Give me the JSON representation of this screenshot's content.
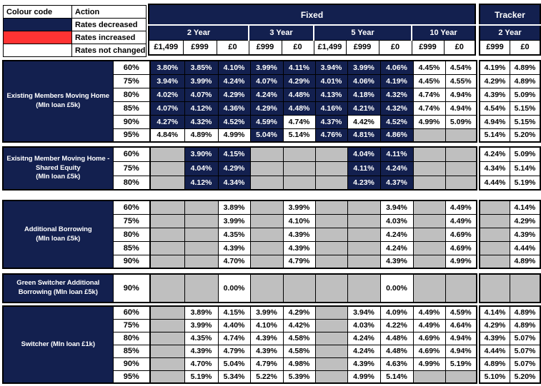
{
  "colors": {
    "navy": "#13204F",
    "red": "#FF3333",
    "grey": "#BFBFBF",
    "white": "#FFFFFF",
    "border": "#000000"
  },
  "legend": {
    "col1_header": "Colour code",
    "col2_header": "Action",
    "rows": [
      {
        "swatch": "navy",
        "label": "Rates decreased"
      },
      {
        "swatch": "red",
        "label": "Rates increased"
      },
      {
        "swatch": "white",
        "label": "Rates not changed"
      }
    ]
  },
  "fixed_header": {
    "title": "Fixed",
    "year_groups": [
      {
        "label": "2 Year",
        "fees": [
          "£1,499",
          "£999",
          "£0"
        ]
      },
      {
        "label": "3 Year",
        "fees": [
          "£999",
          "£0"
        ]
      },
      {
        "label": "5 Year",
        "fees": [
          "£1,499",
          "£999",
          "£0"
        ]
      },
      {
        "label": "10 Year",
        "fees": [
          "£999",
          "£0"
        ]
      }
    ]
  },
  "tracker_header": {
    "title": "Tracker",
    "year_groups": [
      {
        "label": "2 Year",
        "fees": [
          "£999",
          "£0"
        ]
      }
    ]
  },
  "cell_states": {
    "d": "rates_decreased",
    "i": "rates_increased",
    "n": "rates_not_changed",
    "e": "no_product"
  },
  "blocks": [
    {
      "label_lines": [
        "Existing Members Moving Home",
        "(Mln loan £5k)"
      ],
      "rows": [
        {
          "ltv": "60%",
          "fixed": [
            "d:3.80%",
            "d:3.85%",
            "d:4.10%",
            "d:3.99%",
            "d:4.11%",
            "d:3.94%",
            "d:3.99%",
            "d:4.06%",
            "n:4.45%",
            "n:4.54%"
          ],
          "tracker": [
            "n:4.19%",
            "n:4.89%"
          ]
        },
        {
          "ltv": "75%",
          "fixed": [
            "d:3.94%",
            "d:3.99%",
            "d:4.24%",
            "d:4.07%",
            "d:4.29%",
            "d:4.01%",
            "d:4.06%",
            "d:4.19%",
            "n:4.45%",
            "n:4.55%"
          ],
          "tracker": [
            "n:4.29%",
            "n:4.89%"
          ]
        },
        {
          "ltv": "80%",
          "fixed": [
            "d:4.02%",
            "d:4.07%",
            "d:4.29%",
            "d:4.24%",
            "d:4.48%",
            "d:4.13%",
            "d:4.18%",
            "d:4.32%",
            "n:4.74%",
            "n:4.94%"
          ],
          "tracker": [
            "n:4.39%",
            "n:5.09%"
          ]
        },
        {
          "ltv": "85%",
          "fixed": [
            "d:4.07%",
            "d:4.12%",
            "d:4.36%",
            "d:4.29%",
            "d:4.48%",
            "d:4.16%",
            "d:4.21%",
            "d:4.32%",
            "n:4.74%",
            "n:4.94%"
          ],
          "tracker": [
            "n:4.54%",
            "n:5.15%"
          ]
        },
        {
          "ltv": "90%",
          "fixed": [
            "d:4.27%",
            "d:4.32%",
            "d:4.52%",
            "d:4.59%",
            "n:4.74%",
            "d:4.37%",
            "n:4.42%",
            "d:4.52%",
            "n:4.99%",
            "n:5.09%"
          ],
          "tracker": [
            "n:4.94%",
            "n:5.15%"
          ]
        },
        {
          "ltv": "95%",
          "fixed": [
            "n:4.84%",
            "n:4.89%",
            "n:4.99%",
            "d:5.04%",
            "n:5.14%",
            "d:4.76%",
            "d:4.81%",
            "d:4.86%",
            "e",
            "e"
          ],
          "tracker": [
            "n:5.14%",
            "n:5.20%"
          ]
        }
      ]
    },
    {
      "label_lines": [
        "Exisitng Member Moving Home -",
        "Shared Equity",
        "(Mln loan £5k)"
      ],
      "rows": [
        {
          "ltv": "60%",
          "fixed": [
            "e",
            "d:3.90%",
            "d:4.15%",
            "e",
            "e",
            "e",
            "d:4.04%",
            "d:4.11%",
            "e",
            "e"
          ],
          "tracker": [
            "n:4.24%",
            "n:5.09%"
          ]
        },
        {
          "ltv": "75%",
          "fixed": [
            "e",
            "d:4.04%",
            "d:4.29%",
            "e",
            "e",
            "e",
            "d:4.11%",
            "d:4.24%",
            "e",
            "e"
          ],
          "tracker": [
            "n:4.34%",
            "n:5.14%"
          ]
        },
        {
          "ltv": "80%",
          "fixed": [
            "e",
            "d:4.12%",
            "d:4.34%",
            "e",
            "e",
            "e",
            "d:4.23%",
            "d:4.37%",
            "e",
            "e"
          ],
          "tracker": [
            "n:4.44%",
            "n:5.19%"
          ]
        }
      ]
    },
    {
      "label_lines": [
        "Additional Borrowing",
        "(Mln loan £5k)"
      ],
      "rows": [
        {
          "ltv": "60%",
          "fixed": [
            "e",
            "e",
            "n:3.89%",
            "e",
            "n:3.99%",
            "e",
            "e",
            "n:3.94%",
            "e",
            "n:4.49%"
          ],
          "tracker": [
            "e",
            "n:4.14%"
          ]
        },
        {
          "ltv": "75%",
          "fixed": [
            "e",
            "e",
            "n:3.99%",
            "e",
            "n:4.10%",
            "e",
            "e",
            "n:4.03%",
            "e",
            "n:4.49%"
          ],
          "tracker": [
            "e",
            "n:4.29%"
          ]
        },
        {
          "ltv": "80%",
          "fixed": [
            "e",
            "e",
            "n:4.35%",
            "e",
            "n:4.39%",
            "e",
            "e",
            "n:4.24%",
            "e",
            "n:4.69%"
          ],
          "tracker": [
            "e",
            "n:4.39%"
          ]
        },
        {
          "ltv": "85%",
          "fixed": [
            "e",
            "e",
            "n:4.39%",
            "e",
            "n:4.39%",
            "e",
            "e",
            "n:4.24%",
            "e",
            "n:4.69%"
          ],
          "tracker": [
            "e",
            "n:4.44%"
          ]
        },
        {
          "ltv": "90%",
          "fixed": [
            "e",
            "e",
            "n:4.70%",
            "e",
            "n:4.79%",
            "e",
            "e",
            "n:4.39%",
            "e",
            "n:4.99%"
          ],
          "tracker": [
            "e",
            "n:4.89%"
          ]
        }
      ]
    },
    {
      "label_lines": [
        "Green Switcher Additional",
        "Borrowing (Mln loan £5k)"
      ],
      "rows": [
        {
          "ltv": "90%",
          "fixed": [
            "e",
            "e",
            "n:0.00%",
            "e",
            "e",
            "e",
            "e",
            "n:0.00%",
            "e",
            "e"
          ],
          "tracker": [
            "e",
            "e"
          ]
        }
      ]
    },
    {
      "label_lines": [
        "Switcher (Mln loan £1k)"
      ],
      "rows": [
        {
          "ltv": "60%",
          "fixed": [
            "e",
            "n:3.89%",
            "n:4.15%",
            "n:3.99%",
            "n:4.29%",
            "e",
            "n:3.94%",
            "n:4.09%",
            "n:4.49%",
            "n:4.59%"
          ],
          "tracker": [
            "n:4.14%",
            "n:4.89%"
          ]
        },
        {
          "ltv": "75%",
          "fixed": [
            "e",
            "n:3.99%",
            "n:4.40%",
            "n:4.10%",
            "n:4.42%",
            "e",
            "n:4.03%",
            "n:4.22%",
            "n:4.49%",
            "n:4.64%"
          ],
          "tracker": [
            "n:4.29%",
            "n:4.89%"
          ]
        },
        {
          "ltv": "80%",
          "fixed": [
            "e",
            "n:4.35%",
            "n:4.74%",
            "n:4.39%",
            "n:4.58%",
            "e",
            "n:4.24%",
            "n:4.48%",
            "n:4.69%",
            "n:4.94%"
          ],
          "tracker": [
            "n:4.39%",
            "n:5.07%"
          ]
        },
        {
          "ltv": "85%",
          "fixed": [
            "e",
            "n:4.39%",
            "n:4.79%",
            "n:4.39%",
            "n:4.58%",
            "e",
            "n:4.24%",
            "n:4.48%",
            "n:4.69%",
            "n:4.94%"
          ],
          "tracker": [
            "n:4.44%",
            "n:5.07%"
          ]
        },
        {
          "ltv": "90%",
          "fixed": [
            "e",
            "n:4.70%",
            "n:5.04%",
            "n:4.79%",
            "n:4.98%",
            "e",
            "n:4.39%",
            "n:4.63%",
            "n:4.99%",
            "n:5.19%"
          ],
          "tracker": [
            "n:4.89%",
            "n:5.07%"
          ]
        },
        {
          "ltv": "95%",
          "fixed": [
            "e",
            "n:5.19%",
            "n:5.34%",
            "n:5.22%",
            "n:5.39%",
            "e",
            "n:4.99%",
            "n:5.14%",
            "e",
            "e"
          ],
          "tracker": [
            "n:5.10%",
            "n:5.20%"
          ]
        }
      ]
    }
  ]
}
